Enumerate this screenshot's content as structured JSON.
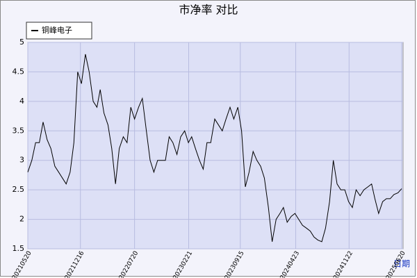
{
  "chart_data": {
    "type": "line",
    "title": "市净率  对比",
    "xlabel": "日期",
    "x": [
      "20210520",
      "20210605",
      "20210620",
      "20210705",
      "20210720",
      "20210805",
      "20210820",
      "20210905",
      "20210920",
      "20211005",
      "20211020",
      "20211105",
      "20211120",
      "20211205",
      "20211220",
      "20220105",
      "20220120",
      "20220205",
      "20220220",
      "20220305",
      "20220320",
      "20220405",
      "20220420",
      "20220505",
      "20220520",
      "20220605",
      "20220620",
      "20220705",
      "20220720",
      "20220805",
      "20220820",
      "20220905",
      "20220920",
      "20221005",
      "20221020",
      "20221105",
      "20221120",
      "20221205",
      "20221220",
      "20230105",
      "20230120",
      "20230205",
      "20230220",
      "20230305",
      "20230320",
      "20230405",
      "20230420",
      "20230505",
      "20230520",
      "20230605",
      "20230620",
      "20230705",
      "20230720",
      "20230805",
      "20230820",
      "20230905",
      "20230920",
      "20231005",
      "20231020",
      "20231105",
      "20231120",
      "20231205",
      "20231220",
      "20240105",
      "20240120",
      "20240205",
      "20240220",
      "20240305",
      "20240320",
      "20240405",
      "20240420",
      "20240505",
      "20240520",
      "20240605",
      "20240620",
      "20240705",
      "20240720",
      "20240805",
      "20240820",
      "20240905",
      "20240920",
      "20241005",
      "20241020",
      "20241105",
      "20241120",
      "20241205",
      "20241220",
      "20250105",
      "20250120",
      "20250205",
      "20250220",
      "20250305",
      "20250320",
      "20250405",
      "20250420",
      "20250505",
      "20250520",
      "20250605",
      "20250620"
    ],
    "series": [
      {
        "name": "铜峰电子",
        "color": "#000000",
        "values": [
          2.8,
          3.0,
          3.3,
          3.3,
          3.65,
          3.35,
          3.2,
          2.9,
          2.8,
          2.7,
          2.6,
          2.8,
          3.3,
          4.5,
          4.3,
          4.8,
          4.5,
          4.0,
          3.9,
          4.2,
          3.8,
          3.6,
          3.2,
          2.6,
          3.2,
          3.4,
          3.3,
          3.9,
          3.7,
          3.9,
          4.05,
          3.5,
          3.0,
          2.8,
          3.0,
          3.0,
          3.0,
          3.4,
          3.3,
          3.1,
          3.4,
          3.5,
          3.3,
          3.4,
          3.2,
          3.0,
          2.85,
          3.3,
          3.3,
          3.7,
          3.6,
          3.5,
          3.7,
          3.9,
          3.7,
          3.9,
          3.5,
          2.55,
          2.8,
          3.15,
          3.0,
          2.9,
          2.7,
          2.2,
          1.62,
          2.0,
          2.1,
          2.2,
          1.95,
          2.05,
          2.1,
          2.0,
          1.9,
          1.85,
          1.8,
          1.7,
          1.65,
          1.62,
          1.85,
          2.3,
          3.0,
          2.6,
          2.5,
          2.5,
          2.3,
          2.2,
          2.5,
          2.4,
          2.5,
          2.55,
          2.6,
          2.35,
          2.1,
          2.3,
          2.35,
          2.35,
          2.42,
          2.45,
          2.52
        ]
      }
    ],
    "xlim": [
      "20210520",
      "20250620"
    ],
    "xticks": [
      "20210520",
      "20211216",
      "20220720",
      "20230221",
      "20230915",
      "20240423",
      "20241122",
      "20250620"
    ],
    "ylim": [
      1.5,
      5.0
    ],
    "yticks": [
      1.5,
      2.0,
      2.5,
      3.0,
      3.5,
      4.0,
      4.5,
      5.0
    ],
    "grid": true,
    "legend": "upper-left"
  }
}
